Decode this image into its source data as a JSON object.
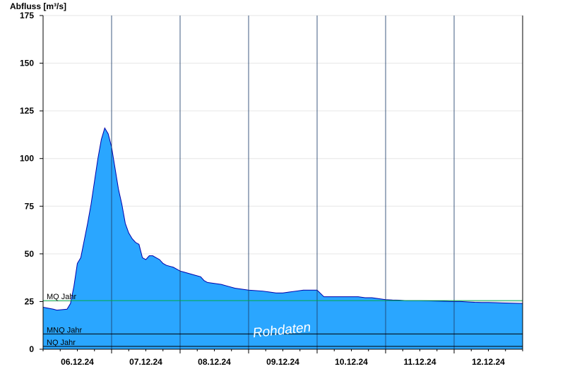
{
  "chart_data": {
    "type": "area",
    "ylabel": "Abfluss [m³/s]",
    "ylim": [
      0,
      175
    ],
    "yticks": [
      0,
      25,
      50,
      75,
      100,
      125,
      150,
      175
    ],
    "xlim": [
      0,
      7
    ],
    "xtick_positions": [
      0.5,
      1.5,
      2.5,
      3.5,
      4.5,
      5.5,
      6.5
    ],
    "xtick_labels": [
      "06.12.24",
      "07.12.24",
      "08.12.24",
      "09.12.24",
      "10.12.24",
      "11.12.24",
      "12.12.24"
    ],
    "day_boundaries": [
      1,
      2,
      3,
      4,
      5,
      6
    ],
    "grid": true,
    "series": [
      {
        "color": "#2aa6ff",
        "line_color": "#0000aa",
        "x": [
          0.0,
          0.15,
          0.2,
          0.35,
          0.4,
          0.45,
          0.5,
          0.55,
          0.6,
          0.65,
          0.7,
          0.75,
          0.8,
          0.85,
          0.9,
          0.95,
          1.0,
          1.05,
          1.1,
          1.15,
          1.2,
          1.25,
          1.3,
          1.35,
          1.4,
          1.45,
          1.5,
          1.55,
          1.6,
          1.65,
          1.7,
          1.75,
          1.8,
          1.85,
          1.9,
          1.95,
          2.0,
          2.05,
          2.1,
          2.15,
          2.2,
          2.3,
          2.35,
          2.4,
          2.5,
          2.6,
          2.7,
          2.8,
          2.9,
          3.0,
          3.2,
          3.3,
          3.4,
          3.5,
          3.6,
          3.7,
          3.8,
          3.9,
          4.0,
          4.1,
          4.2,
          4.3,
          4.4,
          4.5,
          4.6,
          4.7,
          4.8,
          4.9,
          5.0,
          5.1,
          5.2,
          5.3,
          5.4,
          5.5,
          5.6,
          5.7,
          5.8,
          5.9,
          6.0,
          6.1,
          6.2,
          6.3,
          6.4,
          6.5,
          6.6,
          6.7,
          6.8,
          6.9,
          7.0
        ],
        "values": [
          22,
          21,
          20.5,
          21,
          24,
          33,
          45,
          48,
          57,
          66,
          76,
          88,
          100,
          110,
          116,
          113,
          106,
          95,
          84,
          76,
          66,
          61,
          58,
          56,
          55,
          48,
          47,
          49,
          49,
          48,
          47,
          45,
          44,
          43.5,
          43,
          42,
          41,
          40.5,
          40,
          39.5,
          39,
          38,
          36,
          35,
          34.5,
          34,
          33,
          32,
          31.5,
          31,
          30.5,
          30,
          29.5,
          29.5,
          30,
          30.5,
          31,
          31,
          31,
          27.5,
          27.5,
          27.5,
          27.5,
          27.5,
          27.5,
          27,
          27,
          26.5,
          26,
          25.8,
          25.7,
          25.5,
          25.5,
          25.5,
          25.4,
          25.3,
          25.2,
          25.1,
          25,
          25,
          24.8,
          24.6,
          24.5,
          24.5,
          24.4,
          24.3,
          24.2,
          24.1,
          24
        ]
      }
    ],
    "reference_lines": [
      {
        "label": "MQ Jahr",
        "value": 25.5,
        "color": "#00aa44"
      },
      {
        "label": "MNQ Jahr",
        "value": 8,
        "color": "#000000"
      },
      {
        "label": "NQ Jahr",
        "value": 1.5,
        "color": "#000000"
      }
    ],
    "annotation": "Rohdaten"
  }
}
